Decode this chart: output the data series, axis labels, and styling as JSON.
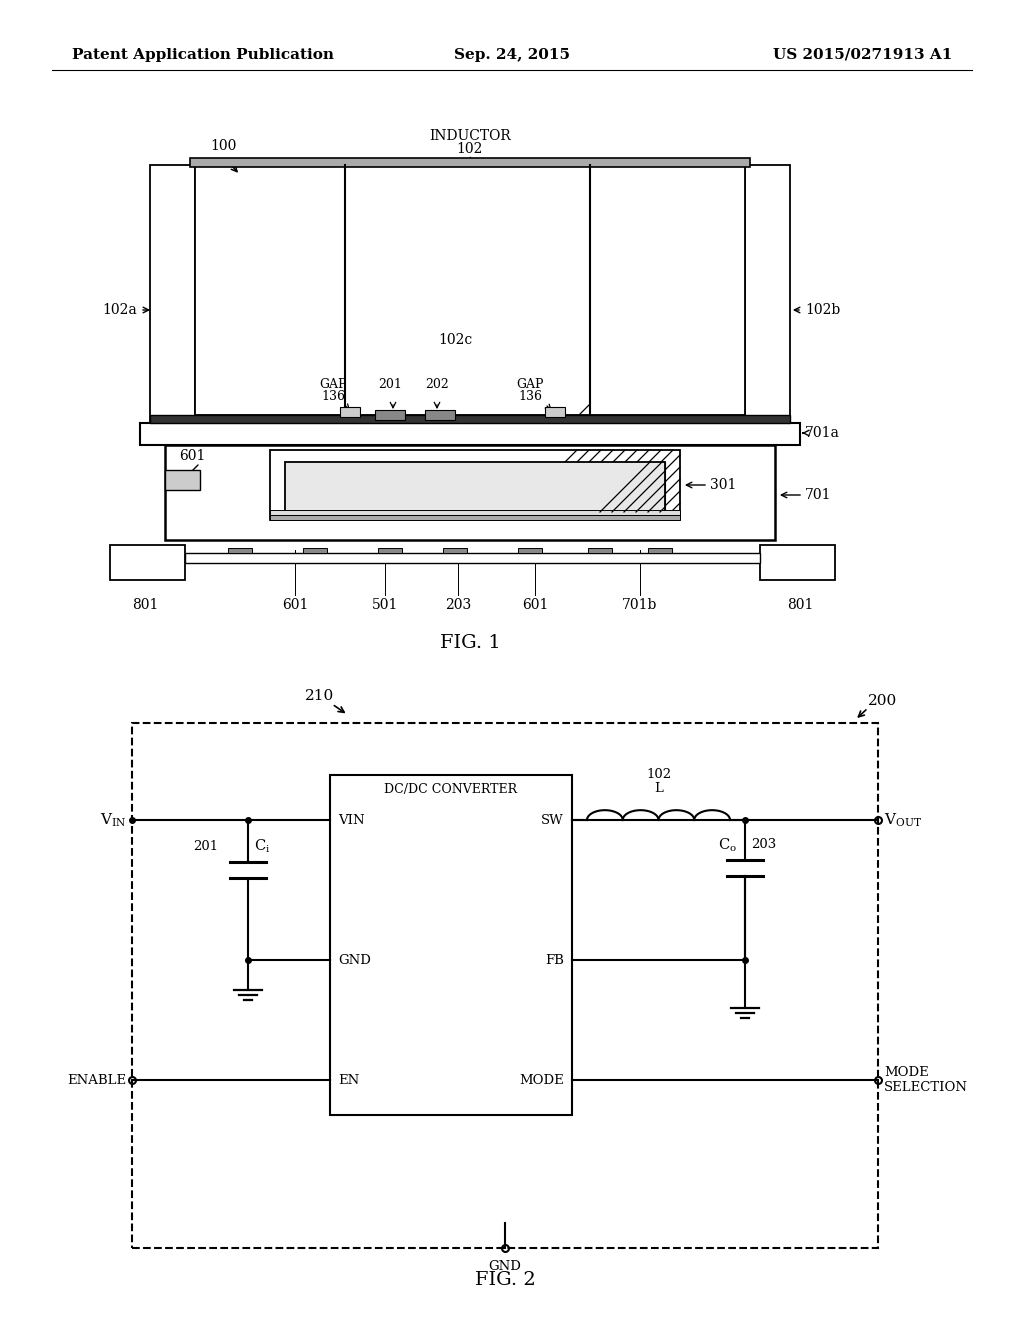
{
  "background_color": "#ffffff",
  "header": {
    "left": "Patent Application Publication",
    "center": "Sep. 24, 2015",
    "right": "US 2015/0271913 A1",
    "font_size": 11
  },
  "fig1_caption": "FIG. 1",
  "fig2_caption": "FIG. 2"
}
